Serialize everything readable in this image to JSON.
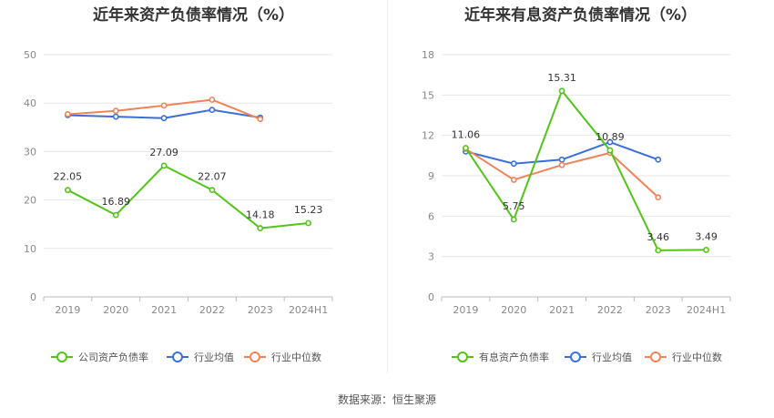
{
  "source": "数据来源：恒生聚源",
  "chart_data": [
    {
      "type": "line",
      "title": "近年来资产负债率情况（%）",
      "categories": [
        "2019",
        "2020",
        "2021",
        "2022",
        "2023",
        "2024H1"
      ],
      "ylim": [
        0,
        50
      ],
      "yticks": [
        0,
        10,
        20,
        30,
        40,
        50
      ],
      "ytick_labels": [
        "0",
        "10",
        "20",
        "30",
        "40",
        "50"
      ],
      "grid": true,
      "legend_position": "bottom",
      "series": [
        {
          "name": "公司资产负债率",
          "color": "#52c41a",
          "values": [
            22.05,
            16.89,
            27.09,
            22.07,
            14.18,
            15.23
          ],
          "labels": [
            "22.05",
            "16.89",
            "27.09",
            "22.07",
            "14.18",
            "15.23"
          ],
          "legend_icon": "circle-icon"
        },
        {
          "name": "行业均值",
          "color": "#3a6fd8",
          "values": [
            37.5,
            37.2,
            36.9,
            38.6,
            37.0,
            null
          ],
          "legend_icon": "circle-icon"
        },
        {
          "name": "行业中位数",
          "color": "#f08456",
          "values": [
            37.7,
            38.4,
            39.5,
            40.7,
            36.7,
            null
          ],
          "legend_icon": "circle-icon"
        }
      ]
    },
    {
      "type": "line",
      "title": "近年来有息资产负债率情况（%）",
      "categories": [
        "2019",
        "2020",
        "2021",
        "2022",
        "2023",
        "2024H1"
      ],
      "ylim": [
        0,
        18
      ],
      "yticks": [
        0,
        3,
        6,
        9,
        12,
        15,
        18
      ],
      "ytick_labels": [
        "0",
        "3",
        "6",
        "9",
        "12",
        "15",
        "18"
      ],
      "grid": true,
      "legend_position": "bottom",
      "series": [
        {
          "name": "有息资产负债率",
          "color": "#52c41a",
          "values": [
            11.06,
            5.75,
            15.31,
            10.89,
            3.46,
            3.49
          ],
          "labels": [
            "11.06",
            "5.75",
            "15.31",
            "10.89",
            "3.46",
            "3.49"
          ],
          "legend_icon": "circle-icon"
        },
        {
          "name": "行业均值",
          "color": "#3a6fd8",
          "values": [
            10.8,
            9.9,
            10.2,
            11.5,
            10.2,
            null
          ],
          "legend_icon": "circle-icon"
        },
        {
          "name": "行业中位数",
          "color": "#f08456",
          "values": [
            11.0,
            8.7,
            9.8,
            10.7,
            7.4,
            null
          ],
          "legend_icon": "circle-icon"
        }
      ]
    }
  ]
}
